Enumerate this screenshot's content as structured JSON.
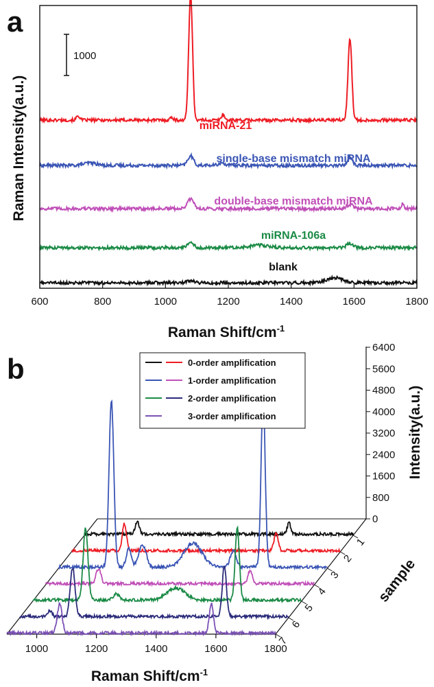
{
  "chart_data": [
    {
      "panel": "a",
      "type": "line",
      "xlabel": "Raman Shift/cm",
      "xlabel_sup": "-1",
      "ylabel": "Raman Intensity(a.u.)",
      "xlim": [
        600,
        1800
      ],
      "xticks": [
        "600",
        "800",
        "1000",
        "1200",
        "1400",
        "1600",
        "1800"
      ],
      "scale_bar_label": "1000",
      "series": [
        {
          "name": "miRNA-21",
          "color": "#ee1c24",
          "baseline": 3950,
          "noise": 38,
          "peaks": [
            [
              1080,
              3100,
              6
            ],
            [
              1587,
              2000,
              6
            ],
            [
              1183,
              140,
              5
            ],
            [
              722,
              110,
              5
            ],
            [
              1020,
              70,
              5
            ]
          ]
        },
        {
          "name": "single-base mismatch miRNA",
          "color": "#3a55b4",
          "baseline": 2850,
          "noise": 40,
          "peaks": [
            [
              1080,
              230,
              9
            ],
            [
              1587,
              200,
              8
            ],
            [
              760,
              60,
              20
            ],
            [
              1180,
              60,
              10
            ]
          ]
        },
        {
          "name": "double-base mismatch miRNA",
          "color": "#c04fb8",
          "baseline": 1800,
          "noise": 40,
          "peaks": [
            [
              1080,
              230,
              10
            ],
            [
              1587,
              100,
              10
            ],
            [
              1755,
              120,
              3
            ]
          ]
        },
        {
          "name": "miRNA-106a",
          "color": "#1a8a45",
          "baseline": 850,
          "noise": 38,
          "peaks": [
            [
              1080,
              120,
              10
            ],
            [
              1587,
              110,
              10
            ],
            [
              1300,
              60,
              30
            ]
          ]
        },
        {
          "name": "blank",
          "color": "#111111",
          "baseline": 0,
          "noise": 38,
          "peaks": [
            [
              1540,
              120,
              25
            ],
            [
              1080,
              50,
              10
            ]
          ]
        }
      ]
    },
    {
      "panel": "b",
      "type": "line",
      "xlabel": "Raman Shift/cm",
      "xlabel_sup": "-1",
      "zlabel": "Intensity(a.u.)",
      "ylabel": "sample",
      "xlim": [
        900,
        1800
      ],
      "xticks": [
        "1000",
        "1200",
        "1400",
        "1600",
        "1800"
      ],
      "zticks": [
        "0",
        "800",
        "1600",
        "2400",
        "3200",
        "4000",
        "4800",
        "5600",
        "6400"
      ],
      "sample_ticks": [
        "1",
        "2",
        "3",
        "4",
        "5",
        "6",
        "7"
      ],
      "legend": [
        {
          "label": "0-order amplification",
          "colors": [
            "#111111",
            "#ee1c24"
          ]
        },
        {
          "label": "1-order amplification",
          "colors": [
            "#3a55b4",
            "#c04fb8"
          ]
        },
        {
          "label": "2-order amplification",
          "colors": [
            "#1a8a45",
            "#2a2a7a"
          ]
        },
        {
          "label": "3-order amplification",
          "colors": [
            "#7a50b4"
          ]
        }
      ],
      "series": [
        {
          "sample": 1,
          "color": "#111111",
          "peaks": [
            [
              1077,
              480,
              7
            ],
            [
              1585,
              420,
              6
            ]
          ]
        },
        {
          "sample": 2,
          "color": "#ee1c24",
          "peaks": [
            [
              1077,
              1000,
              7
            ],
            [
              1585,
              650,
              7
            ]
          ]
        },
        {
          "sample": 3,
          "color": "#3a55b4",
          "peaks": [
            [
              1077,
              6200,
              8
            ],
            [
              1585,
              6300,
              7
            ],
            [
              1135,
              700,
              8
            ],
            [
              1175,
              650,
              10
            ],
            [
              1350,
              900,
              30
            ],
            [
              1485,
              600,
              10
            ],
            [
              1190,
              450,
              8
            ]
          ]
        },
        {
          "sample": 4,
          "color": "#c04fb8",
          "peaks": [
            [
              1077,
              550,
              8
            ],
            [
              1585,
              500,
              7
            ]
          ]
        },
        {
          "sample": 5,
          "color": "#1a8a45",
          "peaks": [
            [
              1077,
              2700,
              8
            ],
            [
              1585,
              2700,
              7
            ],
            [
              1380,
              450,
              30
            ],
            [
              1180,
              250,
              10
            ]
          ]
        },
        {
          "sample": 6,
          "color": "#2a2a7a",
          "peaks": [
            [
              1077,
              1800,
              8
            ],
            [
              1585,
              1900,
              7
            ],
            [
              1000,
              200,
              8
            ]
          ]
        },
        {
          "sample": 7,
          "color": "#7a50b4",
          "peaks": [
            [
              1077,
              1100,
              8
            ],
            [
              1585,
              1100,
              7
            ]
          ]
        }
      ]
    }
  ]
}
